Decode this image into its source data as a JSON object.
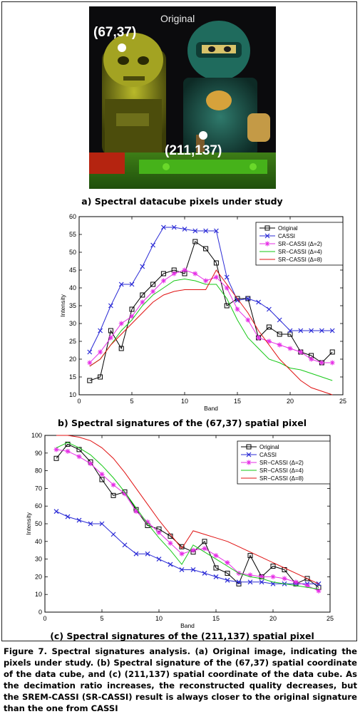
{
  "image": {
    "title": "Original",
    "pixel_a_label": "(67,37)",
    "pixel_b_label": "(211,137)"
  },
  "captions": {
    "a": "a) Spectral datacube pixels under study",
    "b": "b) Spectral signatures of the (67,37) spatial pixel",
    "c": "(c) Spectral signatures of the (211,137) spatial pixel"
  },
  "figure_caption": "Figure 7. Spectral signatures analysis. (a) Original image, indicating the pixels under study. (b) Spectral signature of the (67,37) spatial coordinate of the data cube, and (c) (211,137) spatial coordinate of the data cube. As the decimation ratio increases, the reconstructed quality decreases, but the SREM-CASSI (SR-CASSI) result is always closer to the original signature than the one from CASSI",
  "colors": {
    "original": "#000000",
    "cassi": "#2b2bd6",
    "sr2": "#e62ee6",
    "sr4": "#16c816",
    "sr8": "#e01010"
  },
  "chart_data": [
    {
      "type": "line",
      "xlabel": "Band",
      "ylabel": "Intensity",
      "xlim": [
        0,
        25
      ],
      "ylim": [
        10,
        60
      ],
      "xticks": [
        0,
        5,
        10,
        15,
        20,
        25
      ],
      "yticks": [
        10,
        15,
        20,
        25,
        30,
        35,
        40,
        45,
        50,
        55,
        60
      ],
      "legend": "top-right",
      "series": [
        {
          "name": "Original",
          "color": "#000000",
          "marker": "square",
          "x": [
            1,
            2,
            3,
            4,
            5,
            6,
            7,
            8,
            9,
            10,
            11,
            12,
            13,
            14,
            15,
            16,
            17,
            18,
            19,
            20,
            21,
            22,
            23,
            24
          ],
          "y": [
            14,
            15,
            28,
            23,
            34,
            38,
            41,
            44,
            45,
            44,
            53,
            51,
            47,
            35,
            37,
            37,
            26,
            29,
            27,
            27,
            22,
            21,
            19,
            22
          ]
        },
        {
          "name": "CASSI",
          "color": "#2b2bd6",
          "marker": "x",
          "x": [
            1,
            2,
            3,
            4,
            5,
            6,
            7,
            8,
            9,
            10,
            11,
            12,
            13,
            14,
            15,
            16,
            17,
            18,
            19,
            20,
            21,
            22,
            23,
            24
          ],
          "y": [
            22,
            28,
            35,
            41,
            41,
            46,
            52,
            57,
            57,
            56.5,
            56,
            56,
            56,
            43,
            36.5,
            37,
            36,
            34,
            31,
            28,
            28,
            28,
            28,
            28
          ]
        },
        {
          "name": "SR−CASSI (Δ=2)",
          "color": "#e62ee6",
          "marker": "star",
          "x": [
            1,
            2,
            3,
            4,
            5,
            6,
            7,
            8,
            9,
            10,
            11,
            12,
            13,
            14,
            15,
            16,
            17,
            18,
            19,
            20,
            21,
            22,
            23,
            24
          ],
          "y": [
            19,
            22,
            26,
            30,
            32,
            36,
            39,
            42,
            44,
            45,
            44,
            42,
            43,
            40,
            34,
            31,
            26,
            25,
            24,
            23,
            22,
            20,
            19,
            19
          ]
        },
        {
          "name": "SR−CASSI (Δ=4)",
          "color": "#16c816",
          "marker": "none",
          "x": [
            1,
            2,
            3,
            4,
            5,
            6,
            7,
            8,
            9,
            10,
            11,
            12,
            13,
            14,
            15,
            16,
            17,
            18,
            19,
            20,
            21,
            22,
            23,
            24
          ],
          "y": [
            18,
            20,
            24,
            28,
            31,
            35,
            38,
            40,
            42,
            42.5,
            42,
            41,
            41,
            37,
            31,
            26,
            23,
            20,
            19,
            17.5,
            17,
            16,
            15,
            14
          ]
        },
        {
          "name": "SR−CASSI (Δ=8)",
          "color": "#e01010",
          "marker": "none",
          "x": [
            1,
            2,
            3,
            4,
            5,
            6,
            7,
            8,
            9,
            10,
            11,
            12,
            13,
            14,
            15,
            16,
            17,
            18,
            19,
            20,
            21,
            22,
            23,
            24
          ],
          "y": [
            18,
            20,
            24,
            27,
            30,
            33,
            36,
            38,
            39,
            39.5,
            39.5,
            39.5,
            45,
            41,
            37,
            33,
            28,
            24,
            20,
            17,
            14,
            12,
            11,
            10
          ]
        }
      ]
    },
    {
      "type": "line",
      "xlabel": "Band",
      "ylabel": "Intensity",
      "xlim": [
        0,
        25
      ],
      "ylim": [
        0,
        100
      ],
      "xticks": [
        0,
        5,
        10,
        15,
        20,
        25
      ],
      "yticks": [
        0,
        10,
        20,
        30,
        40,
        50,
        60,
        70,
        80,
        90,
        100
      ],
      "legend": "top-right",
      "series": [
        {
          "name": "Original",
          "color": "#000000",
          "marker": "square",
          "x": [
            1,
            2,
            3,
            4,
            5,
            6,
            7,
            8,
            9,
            10,
            11,
            12,
            13,
            14,
            15,
            16,
            17,
            18,
            19,
            20,
            21,
            22,
            23,
            24
          ],
          "y": [
            87,
            95,
            92,
            85,
            75,
            66,
            68,
            58,
            49,
            47,
            43,
            37,
            34,
            40,
            25,
            22,
            16,
            32,
            20,
            26,
            24,
            16,
            19,
            14
          ]
        },
        {
          "name": "CASSI",
          "color": "#2b2bd6",
          "marker": "x",
          "x": [
            1,
            2,
            3,
            4,
            5,
            6,
            7,
            8,
            9,
            10,
            11,
            12,
            13,
            14,
            15,
            16,
            17,
            18,
            19,
            20,
            21,
            22,
            23,
            24
          ],
          "y": [
            57,
            54,
            52,
            50,
            50,
            44,
            38,
            33,
            33,
            30,
            27,
            24,
            24,
            22,
            20,
            18,
            17,
            17,
            17,
            16,
            16,
            16,
            16,
            16
          ]
        },
        {
          "name": "SR−CASSI (Δ=2)",
          "color": "#e62ee6",
          "marker": "star",
          "x": [
            1,
            2,
            3,
            4,
            5,
            6,
            7,
            8,
            9,
            10,
            11,
            12,
            13,
            14,
            15,
            16,
            17,
            18,
            19,
            20,
            21,
            22,
            23,
            24
          ],
          "y": [
            92,
            91,
            88,
            84,
            78,
            72,
            67,
            57,
            51,
            45,
            39,
            33,
            35,
            36,
            32,
            28,
            22,
            21,
            20,
            20,
            19,
            17,
            15,
            12
          ]
        },
        {
          "name": "SR−CASSI (Δ=4)",
          "color": "#16c816",
          "marker": "none",
          "x": [
            1,
            2,
            3,
            4,
            5,
            6,
            7,
            8,
            9,
            10,
            11,
            12,
            13,
            14,
            15,
            16,
            17,
            18,
            19,
            20,
            21,
            22,
            23,
            24
          ],
          "y": [
            93,
            96,
            93,
            89,
            83,
            76,
            68,
            59,
            50,
            42,
            35,
            27,
            38,
            34,
            30,
            26,
            22,
            20,
            19,
            17,
            16,
            15,
            14,
            13
          ]
        },
        {
          "name": "SR−CASSI (Δ=8)",
          "color": "#e01010",
          "marker": "none",
          "x": [
            1,
            2,
            3,
            4,
            5,
            6,
            7,
            8,
            9,
            10,
            11,
            12,
            13,
            14,
            15,
            16,
            17,
            18,
            19,
            20,
            21,
            22,
            23,
            24
          ],
          "y": [
            100,
            100,
            99,
            97,
            93,
            87,
            79,
            70,
            61,
            52,
            44,
            36,
            46,
            44,
            42,
            40,
            37,
            34,
            31,
            28,
            25,
            22,
            19,
            16
          ]
        }
      ]
    }
  ]
}
